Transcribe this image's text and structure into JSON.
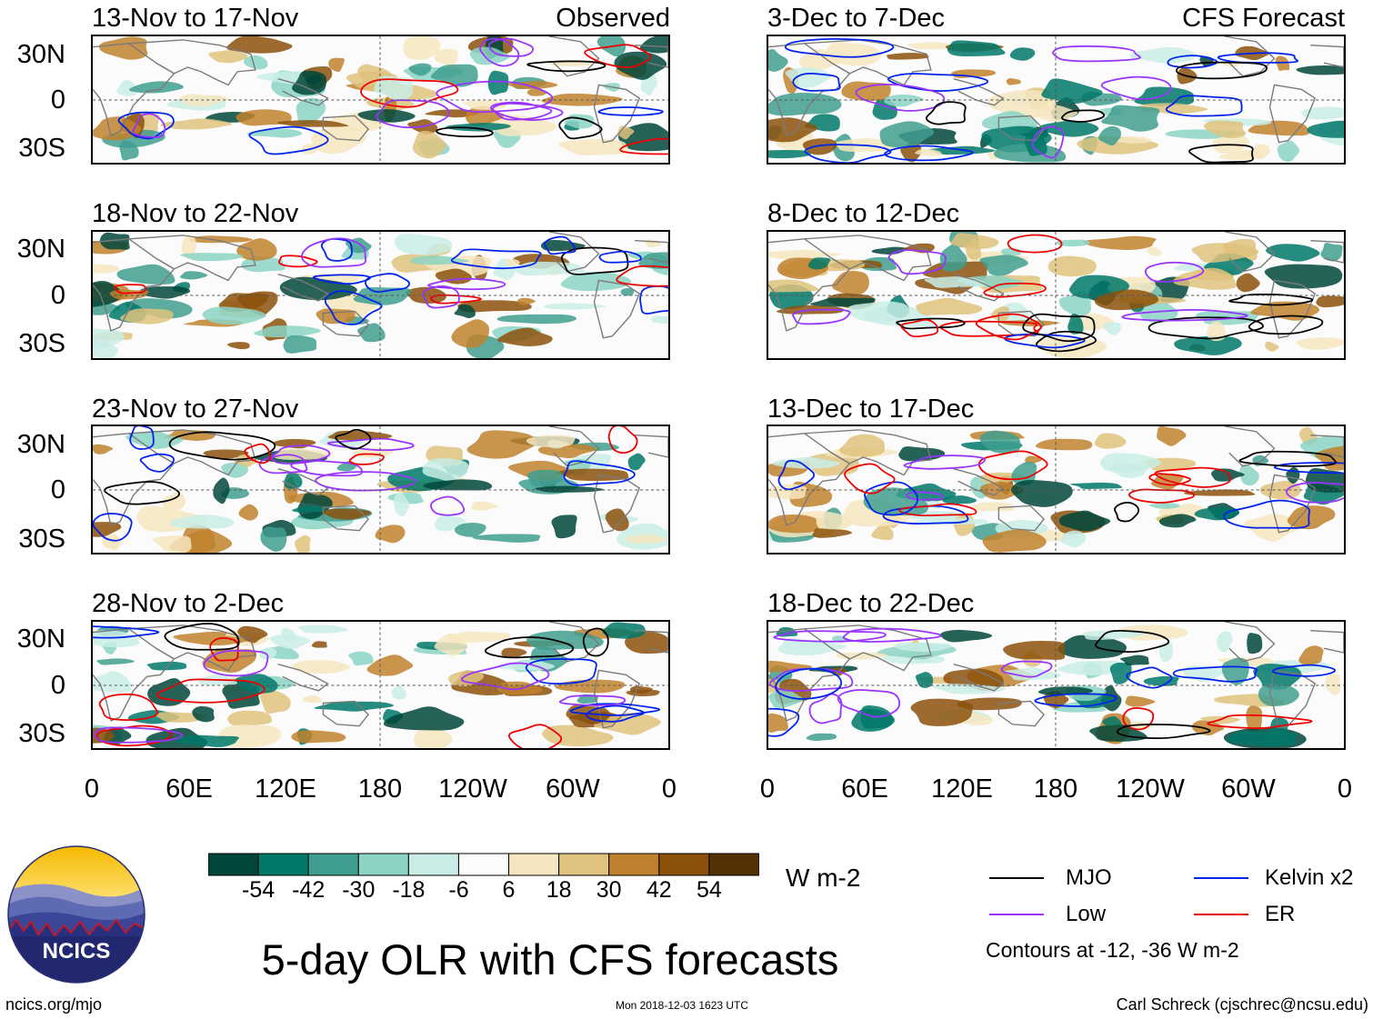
{
  "panels": [
    {
      "id": "p1",
      "title": "13-Nov to 17-Nov",
      "tag": "Observed"
    },
    {
      "id": "p2",
      "title": "3-Dec to 7-Dec",
      "tag": "CFS Forecast"
    },
    {
      "id": "p3",
      "title": "18-Nov to 22-Nov",
      "tag": ""
    },
    {
      "id": "p4",
      "title": "8-Dec to 12-Dec",
      "tag": ""
    },
    {
      "id": "p5",
      "title": "23-Nov to 27-Nov",
      "tag": ""
    },
    {
      "id": "p6",
      "title": "13-Dec to 17-Dec",
      "tag": ""
    },
    {
      "id": "p7",
      "title": "28-Nov to 2-Dec",
      "tag": ""
    },
    {
      "id": "p8",
      "title": "18-Dec to 22-Dec",
      "tag": ""
    }
  ],
  "axes": {
    "lat_labels": [
      "30N",
      "0",
      "30S"
    ],
    "lon_labels": [
      "0",
      "60E",
      "120E",
      "180",
      "120W",
      "60W",
      "0"
    ]
  },
  "colorbar": {
    "colors": [
      "#00463a",
      "#00786a",
      "#3f9e8f",
      "#8bd3c4",
      "#c9ede6",
      "#fbfbfb",
      "#f6e6bf",
      "#dfc27d",
      "#bf812d",
      "#8c510a",
      "#543005"
    ],
    "labels": [
      "-54",
      "-42",
      "-30",
      "-18",
      "-6",
      "6",
      "18",
      "30",
      "42",
      "54"
    ],
    "units": "W m-2"
  },
  "legend": {
    "items": [
      {
        "label": "MJO",
        "color": "#000000"
      },
      {
        "label": "Kelvin x2",
        "color": "#0022ee"
      },
      {
        "label": "Low",
        "color": "#9933ff"
      },
      {
        "label": "ER",
        "color": "#ee0000"
      }
    ],
    "note": "Contours at -12, -36 W m-2"
  },
  "logo": {
    "text": "NCICS"
  },
  "footer": {
    "main_title": "5-day OLR with CFS forecasts",
    "url": "ncics.org/mjo",
    "timestamp": "Mon 2018-12-03 1623 UTC",
    "credit": "Carl Schreck (cjschrec@ncsu.edu)"
  }
}
